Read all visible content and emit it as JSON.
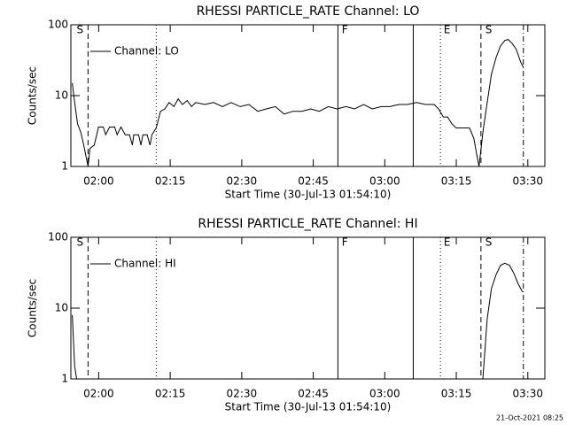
{
  "chart_data": [
    {
      "type": "line",
      "title": "RHESSI PARTICLE_RATE Channel: LO",
      "xlabel": "Start Time (30-Jul-13 01:54:10)",
      "ylabel": "Counts/sec",
      "xlim": [
        0,
        99.4
      ],
      "xticks": [
        {
          "value": 5.83,
          "label": "02:00"
        },
        {
          "value": 20.83,
          "label": "02:15"
        },
        {
          "value": 35.83,
          "label": "02:30"
        },
        {
          "value": 50.83,
          "label": "02:45"
        },
        {
          "value": 65.83,
          "label": "03:00"
        },
        {
          "value": 80.83,
          "label": "03:15"
        },
        {
          "value": 95.83,
          "label": "03:30"
        }
      ],
      "ylim": [
        1,
        100
      ],
      "yticks": [
        1,
        10,
        100
      ],
      "log_y": true,
      "legend": "top-left",
      "x": [
        0.3,
        0.8,
        1.4,
        2.1,
        2.7,
        3.6,
        4.0,
        4.9,
        5.8,
        6.8,
        7.3,
        8.1,
        9.2,
        9.7,
        10.5,
        11.4,
        12.3,
        12.9,
        13.2,
        14.2,
        14.7,
        15.1,
        16.0,
        16.6,
        17.0,
        17.9,
        18.8,
        19.7,
        20.6,
        21.6,
        22.5,
        23.4,
        24.4,
        25.3,
        26.2,
        28.1,
        29.9,
        31.8,
        33.6,
        35.5,
        37.3,
        39.2,
        41.0,
        42.9,
        44.7,
        46.6,
        48.4,
        50.3,
        52.1,
        54.0,
        55.8,
        57.7,
        59.5,
        61.4,
        63.2,
        65.1,
        66.9,
        68.8,
        70.6,
        72.5,
        74.4,
        76.2,
        77.1,
        78.1,
        79.0,
        79.9,
        80.8,
        81.8,
        82.7,
        83.6,
        84.5,
        85.1,
        85.6,
        86.4,
        87.3,
        88.2,
        89.2,
        90.1,
        91.0,
        91.7,
        92.5,
        93.4,
        94.3,
        94.9
      ],
      "series": [
        {
          "name": "Channel: LO",
          "color": "#000000",
          "values": [
            15,
            8,
            4,
            3,
            2,
            1,
            1.8,
            2,
            3.6,
            3.6,
            2.8,
            3.6,
            3.6,
            2.8,
            3.6,
            2.8,
            2.8,
            2,
            2.8,
            2.8,
            2,
            2.8,
            2.8,
            2,
            2.8,
            3.5,
            6,
            6.5,
            8,
            7,
            9,
            7.5,
            8.5,
            7,
            8,
            7.5,
            8,
            7,
            8,
            7,
            7.5,
            6,
            6.5,
            7,
            5.5,
            6,
            6,
            6.5,
            6,
            7,
            6.5,
            7,
            6.5,
            7.5,
            6.5,
            7,
            7,
            7.5,
            7.5,
            8,
            7.5,
            7.5,
            6.5,
            5,
            5,
            4,
            3.5,
            3.5,
            3.5,
            3.5,
            2.5,
            1.5,
            1,
            3,
            8,
            20,
            35,
            50,
            60,
            62,
            55,
            45,
            30,
            25
          ]
        }
      ],
      "markers": [
        {
          "x": 3.6,
          "style": "dashed"
        },
        {
          "x": 17.9,
          "style": "dotted"
        },
        {
          "x": 56.0,
          "style": "solid"
        },
        {
          "x": 71.8,
          "style": "solid"
        },
        {
          "x": 77.5,
          "style": "dotted"
        },
        {
          "x": 86.0,
          "style": "dashed"
        },
        {
          "x": 94.9,
          "style": "dashdot"
        }
      ],
      "marker_labels": [
        {
          "x": 1.2,
          "text": "S"
        },
        {
          "x": 56.8,
          "text": "F"
        },
        {
          "x": 78.2,
          "text": "E"
        },
        {
          "x": 86.9,
          "text": "S"
        }
      ]
    },
    {
      "type": "line",
      "title": "RHESSI PARTICLE_RATE Channel: HI",
      "xlabel": "Start Time (30-Jul-13 01:54:10)",
      "ylabel": "Counts/sec",
      "xlim": [
        0,
        99.4
      ],
      "xticks": [
        {
          "value": 5.83,
          "label": "02:00"
        },
        {
          "value": 20.83,
          "label": "02:15"
        },
        {
          "value": 35.83,
          "label": "02:30"
        },
        {
          "value": 50.83,
          "label": "02:45"
        },
        {
          "value": 65.83,
          "label": "03:00"
        },
        {
          "value": 80.83,
          "label": "03:15"
        },
        {
          "value": 95.83,
          "label": "03:30"
        }
      ],
      "ylim": [
        1,
        100
      ],
      "yticks": [
        1,
        10,
        100
      ],
      "log_y": true,
      "legend": "top-left",
      "x": [
        0.3,
        0.8,
        1.2,
        45.0,
        86.4,
        87.3,
        88.2,
        89.2,
        90.1,
        91.0,
        92.0,
        92.9,
        93.8,
        94.7
      ],
      "series": [
        {
          "name": "Channel: HI",
          "color": "#000000",
          "values": [
            8,
            1.5,
            1,
            null,
            1,
            7,
            19,
            30,
            40,
            43,
            40,
            31,
            22,
            17
          ]
        }
      ],
      "markers": [
        {
          "x": 3.6,
          "style": "dashed"
        },
        {
          "x": 17.9,
          "style": "dotted"
        },
        {
          "x": 56.0,
          "style": "solid"
        },
        {
          "x": 71.8,
          "style": "solid"
        },
        {
          "x": 77.5,
          "style": "dotted"
        },
        {
          "x": 86.0,
          "style": "dashed"
        },
        {
          "x": 94.9,
          "style": "dashdot"
        }
      ],
      "marker_labels": [
        {
          "x": 1.2,
          "text": "S"
        },
        {
          "x": 56.8,
          "text": "F"
        },
        {
          "x": 78.2,
          "text": "E"
        },
        {
          "x": 86.9,
          "text": "S"
        }
      ]
    }
  ],
  "footer": "21-Oct-2021 08:25"
}
